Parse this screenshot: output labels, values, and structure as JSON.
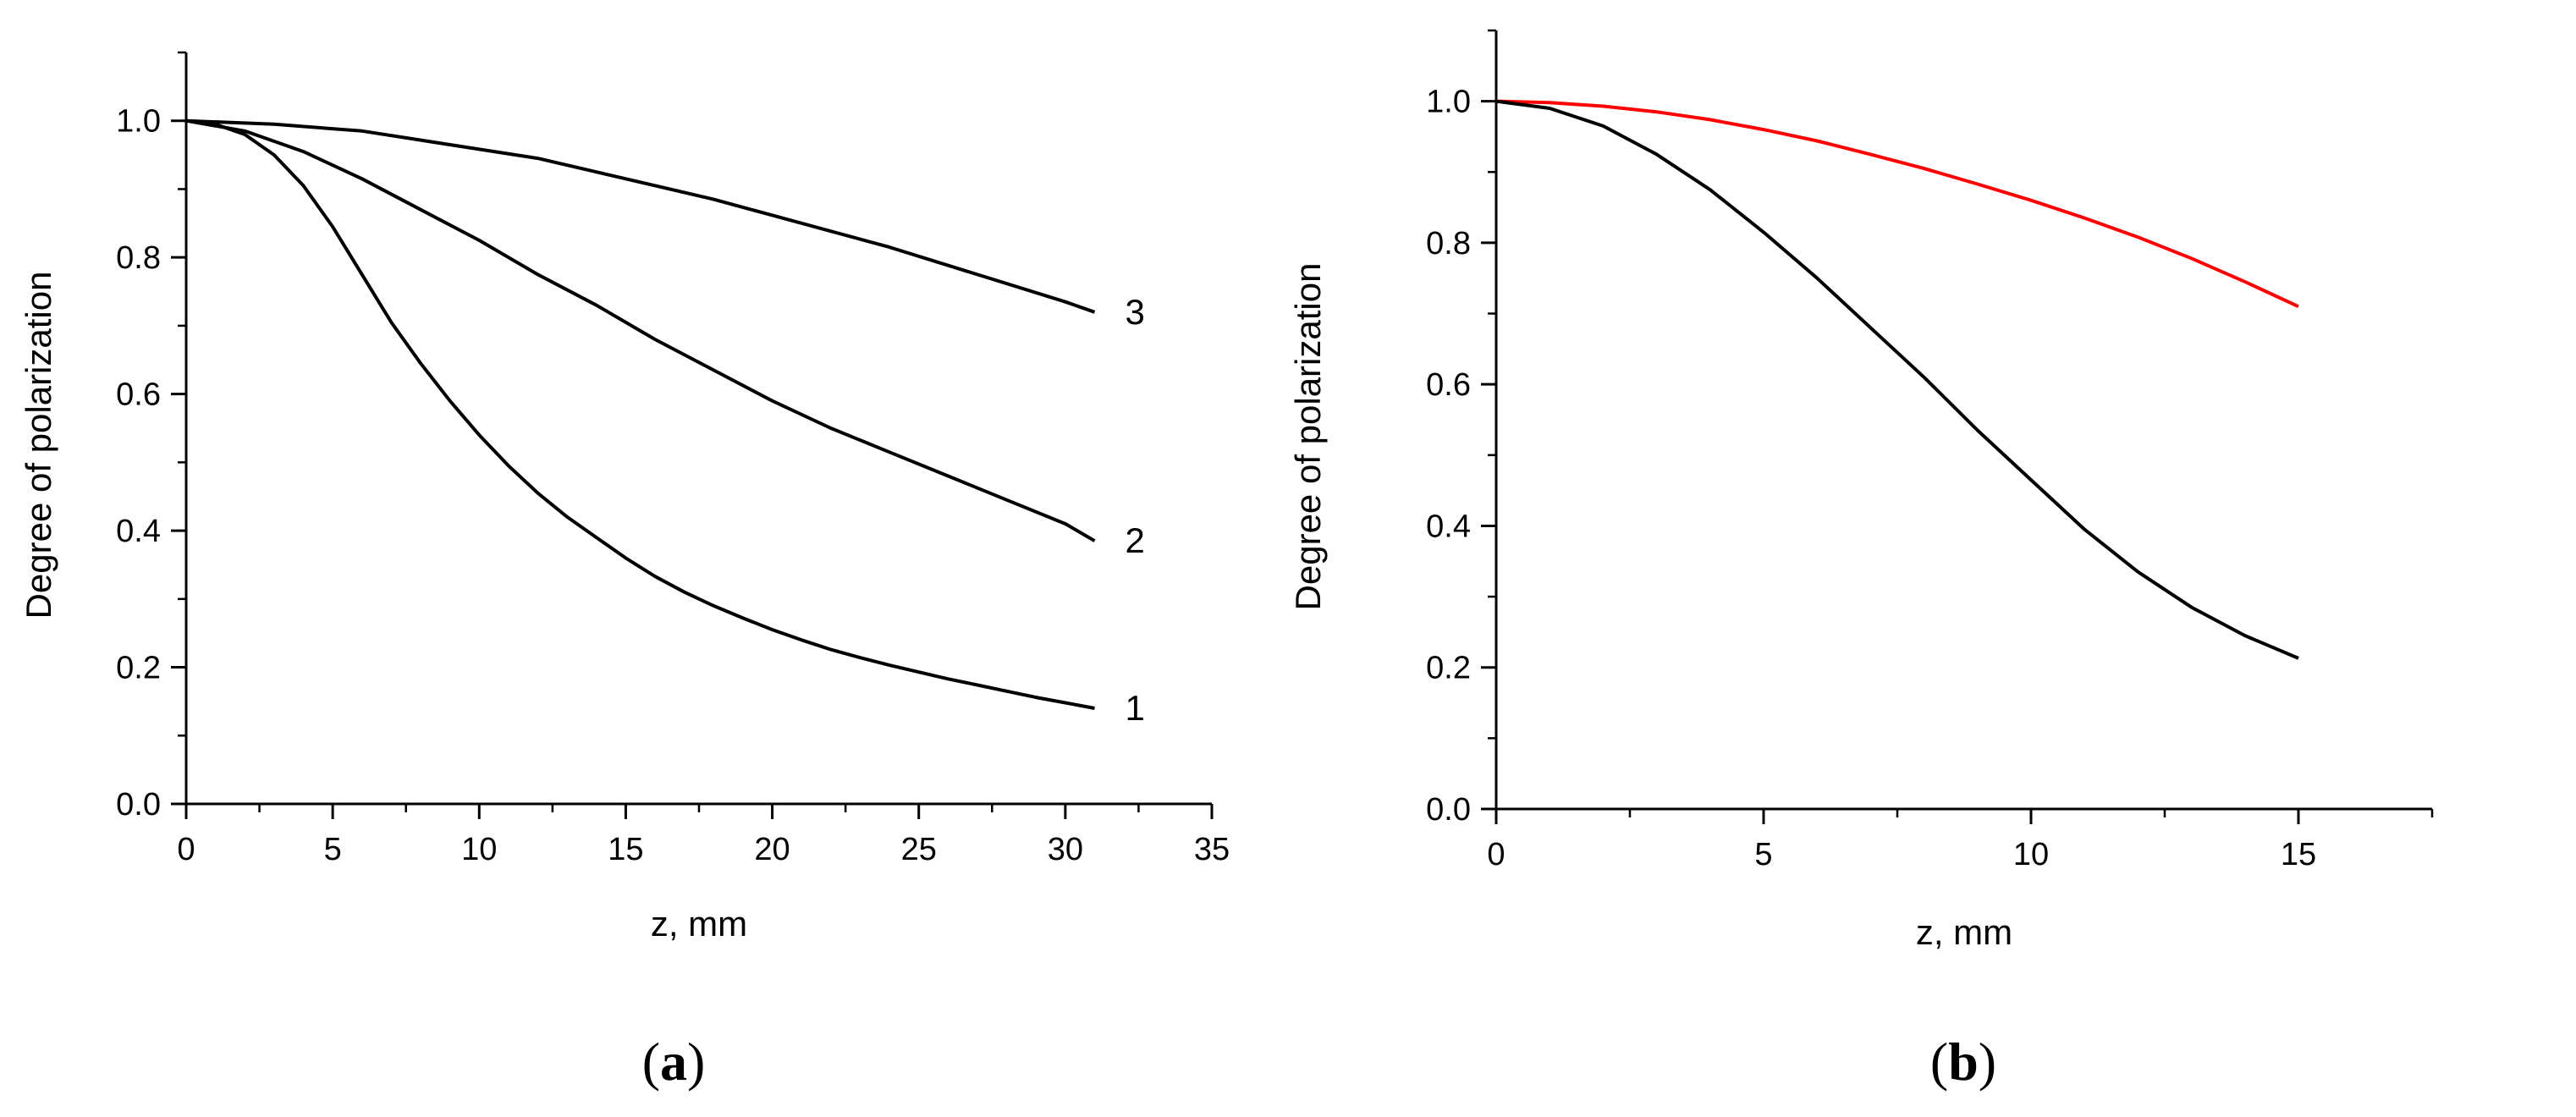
{
  "chart_data": [
    {
      "type": "line",
      "panel_label": {
        "open": "(",
        "letter": "a",
        "close": ")"
      },
      "xlabel": "z, mm",
      "ylabel": "Degree of polarization",
      "xlim": [
        0,
        35
      ],
      "ylim": [
        0,
        1.1
      ],
      "xticks": [
        0,
        5,
        10,
        15,
        20,
        25,
        30,
        35
      ],
      "xtick_labels": [
        "0",
        "5",
        "10",
        "15",
        "20",
        "25",
        "30",
        "35"
      ],
      "yticks": [
        0,
        0.2,
        0.4,
        0.6,
        0.8,
        1.0
      ],
      "ytick_labels": [
        "0.0",
        "0.2",
        "0.4",
        "0.6",
        "0.8",
        "1.0"
      ],
      "grid": false,
      "series": [
        {
          "name": "1",
          "color": "#000000",
          "x": [
            0,
            1,
            2,
            3,
            4,
            5,
            6,
            7,
            8,
            9,
            10,
            11,
            12,
            13,
            14,
            15,
            16,
            17,
            18,
            19,
            20,
            21,
            22,
            23,
            24,
            25,
            26,
            27,
            28,
            29,
            30,
            31
          ],
          "y": [
            1.0,
            0.995,
            0.98,
            0.95,
            0.905,
            0.845,
            0.775,
            0.705,
            0.645,
            0.59,
            0.54,
            0.495,
            0.455,
            0.42,
            0.39,
            0.36,
            0.333,
            0.31,
            0.29,
            0.272,
            0.255,
            0.24,
            0.226,
            0.214,
            0.203,
            0.193,
            0.183,
            0.174,
            0.165,
            0.156,
            0.148,
            0.14
          ]
        },
        {
          "name": "2",
          "color": "#000000",
          "x": [
            0,
            2,
            4,
            6,
            8,
            10,
            12,
            14,
            16,
            18,
            20,
            22,
            24,
            26,
            28,
            30,
            31
          ],
          "y": [
            1.0,
            0.985,
            0.955,
            0.915,
            0.87,
            0.825,
            0.775,
            0.73,
            0.68,
            0.635,
            0.59,
            0.55,
            0.515,
            0.48,
            0.445,
            0.41,
            0.385
          ]
        },
        {
          "name": "3",
          "color": "#000000",
          "x": [
            0,
            3,
            6,
            9,
            12,
            15,
            18,
            21,
            24,
            27,
            30,
            31
          ],
          "y": [
            1.0,
            0.995,
            0.985,
            0.965,
            0.945,
            0.915,
            0.885,
            0.85,
            0.815,
            0.775,
            0.735,
            0.72
          ]
        }
      ]
    },
    {
      "type": "line",
      "panel_label": {
        "open": "(",
        "letter": "b",
        "close": ")"
      },
      "xlabel": "z, mm",
      "ylabel": "Degree of polarization",
      "xlim": [
        0,
        17.5
      ],
      "ylim": [
        0,
        1.1
      ],
      "xticks": [
        0,
        5,
        10,
        15
      ],
      "xtick_labels": [
        "0",
        "5",
        "10",
        "15"
      ],
      "yticks": [
        0,
        0.2,
        0.4,
        0.6,
        0.8,
        1.0
      ],
      "ytick_labels": [
        "0.0",
        "0.2",
        "0.4",
        "0.6",
        "0.8",
        "1.0"
      ],
      "grid": false,
      "series": [
        {
          "color": "#ff0000",
          "x": [
            0,
            1,
            2,
            3,
            4,
            5,
            6,
            7,
            8,
            9,
            10,
            11,
            12,
            13,
            14,
            15
          ],
          "y": [
            1.0,
            0.998,
            0.993,
            0.985,
            0.974,
            0.96,
            0.944,
            0.925,
            0.905,
            0.883,
            0.86,
            0.835,
            0.808,
            0.778,
            0.745,
            0.71
          ]
        },
        {
          "color": "#000000",
          "x": [
            0,
            1,
            2,
            3,
            4,
            5,
            6,
            7,
            8,
            9,
            10,
            11,
            12,
            13,
            14,
            15
          ],
          "y": [
            1.0,
            0.99,
            0.965,
            0.925,
            0.875,
            0.815,
            0.75,
            0.68,
            0.61,
            0.535,
            0.465,
            0.395,
            0.335,
            0.285,
            0.245,
            0.213
          ]
        }
      ]
    }
  ]
}
